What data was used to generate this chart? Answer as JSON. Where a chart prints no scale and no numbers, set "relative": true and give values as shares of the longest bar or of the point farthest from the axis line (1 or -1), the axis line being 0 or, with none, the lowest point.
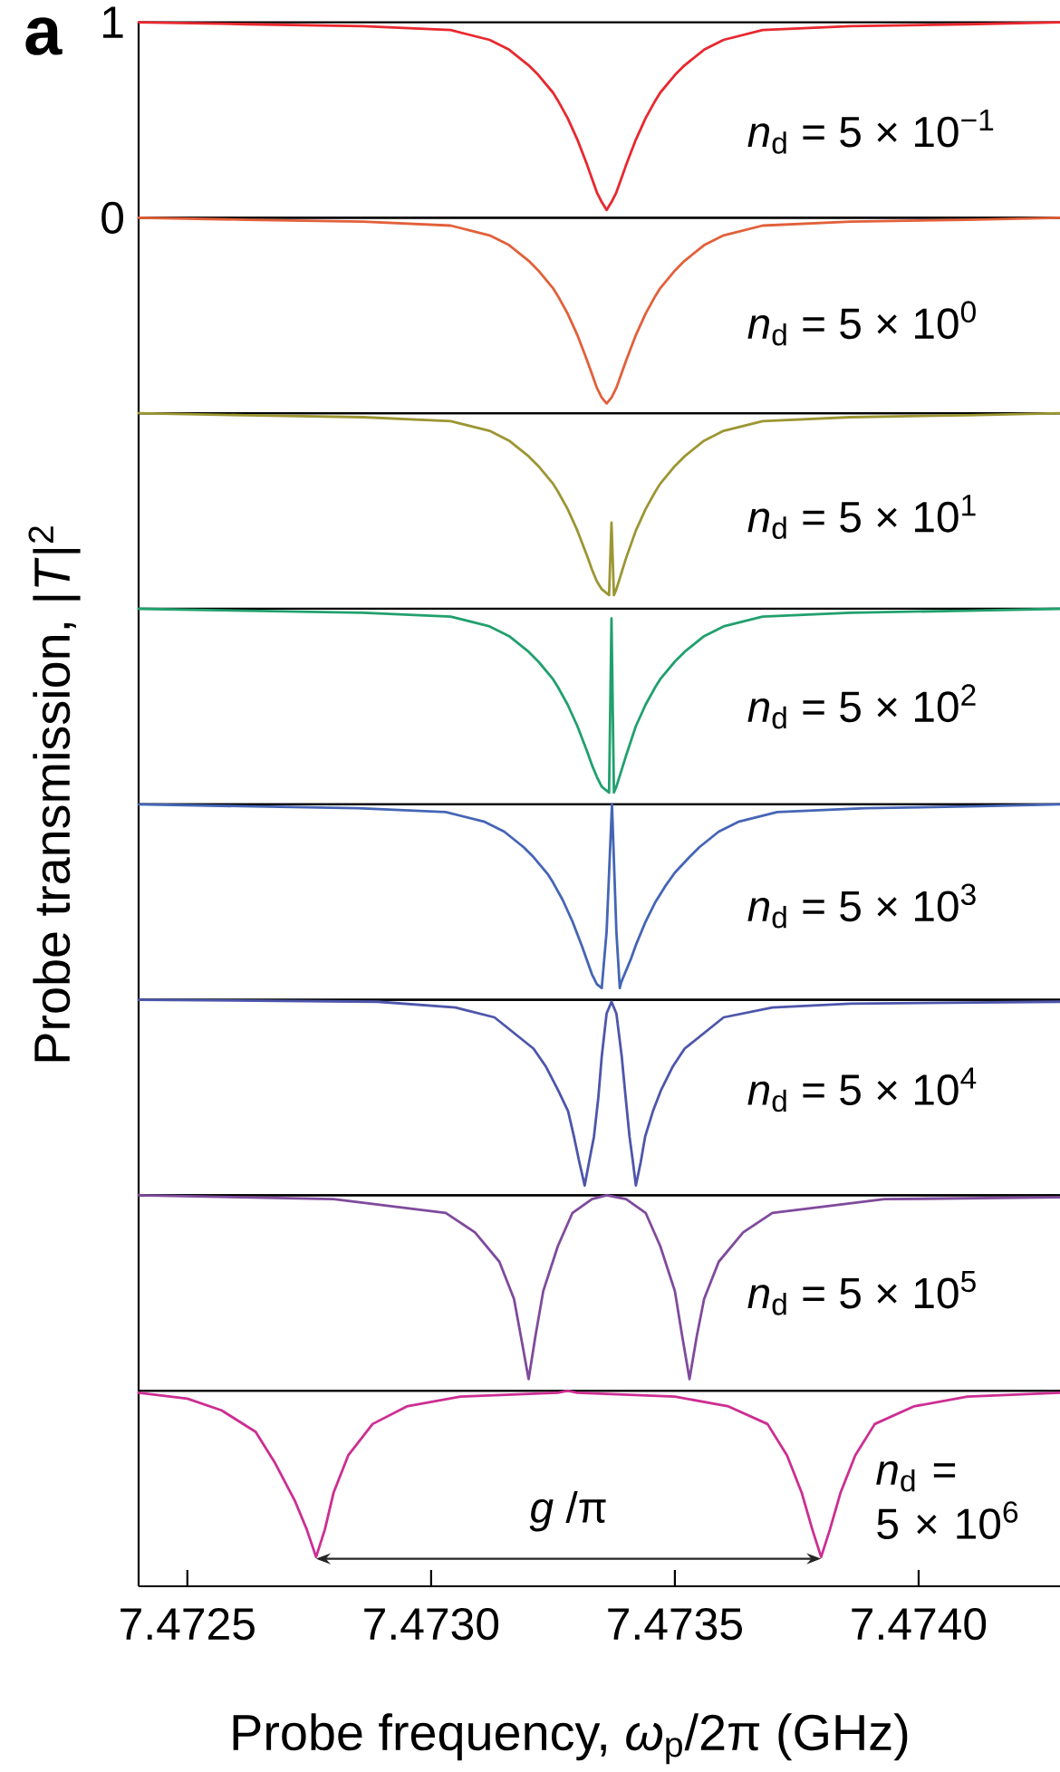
{
  "chart_data": [
    {
      "type": "line",
      "title": "a",
      "x": [
        7.4724,
        7.47262,
        7.47286,
        7.47304,
        7.47312,
        7.47316,
        7.4732,
        7.47322,
        7.47325,
        7.47326,
        7.47328,
        7.4733,
        7.47332,
        7.47333,
        7.47334,
        7.47335,
        7.47336,
        7.47337,
        7.47338,
        7.47339,
        7.4734,
        7.47342,
        7.47344,
        7.47346,
        7.47347,
        7.4735,
        7.47352,
        7.47356,
        7.4736,
        7.47368,
        7.47386,
        7.4741,
        7.47429
      ],
      "series": [
        {
          "name": "*n*$_{d}$ = 5 × 10$^{−1}$",
          "color": "#e8282f",
          "values": [
            1.0,
            0.99,
            0.98,
            0.96,
            0.91,
            0.86,
            0.78,
            0.73,
            0.64,
            0.6,
            0.51,
            0.4,
            0.27,
            0.2,
            0.13,
            0.08,
            0.04,
            0.08,
            0.13,
            0.2,
            0.27,
            0.4,
            0.51,
            0.6,
            0.64,
            0.73,
            0.78,
            0.86,
            0.91,
            0.96,
            0.98,
            0.99,
            1.0
          ]
        }
      ],
      "xlim": [
        7.4724,
        7.47429
      ],
      "ylim": [
        0,
        1
      ],
      "yticks": [
        0,
        1
      ],
      "tick_labels": "y"
    },
    {
      "type": "line",
      "relative": true,
      "x": [
        7.4724,
        7.47262,
        7.47286,
        7.47304,
        7.47312,
        7.47316,
        7.4732,
        7.47322,
        7.47325,
        7.47326,
        7.47328,
        7.4733,
        7.47332,
        7.47333,
        7.47334,
        7.47335,
        7.47336,
        7.47337,
        7.47338,
        7.47339,
        7.4734,
        7.47342,
        7.47344,
        7.47346,
        7.47347,
        7.4735,
        7.47352,
        7.47356,
        7.4736,
        7.47368,
        7.47386,
        7.4741,
        7.47429
      ],
      "series": [
        {
          "name": "*n*$_{d}$ = 5 × 10$^{0}$",
          "color": "#e2603a",
          "values": [
            1.0,
            0.99,
            0.98,
            0.96,
            0.91,
            0.86,
            0.78,
            0.73,
            0.64,
            0.6,
            0.51,
            0.4,
            0.27,
            0.2,
            0.13,
            0.08,
            0.05,
            0.08,
            0.13,
            0.2,
            0.27,
            0.4,
            0.51,
            0.6,
            0.64,
            0.73,
            0.78,
            0.86,
            0.91,
            0.96,
            0.98,
            0.99,
            1.0
          ]
        }
      ],
      "xlim": [
        7.4724,
        7.47429
      ],
      "tick_labels": false
    },
    {
      "type": "line",
      "relative": true,
      "x": [
        7.4724,
        7.47262,
        7.47286,
        7.47304,
        7.47312,
        7.47316,
        7.4732,
        7.47322,
        7.47325,
        7.47326,
        7.47328,
        7.4733,
        7.47332,
        7.47333,
        7.47334,
        7.47335,
        7.473365,
        7.47337,
        7.473375,
        7.47338,
        7.47339,
        7.4734,
        7.47342,
        7.47344,
        7.47346,
        7.47347,
        7.4735,
        7.47352,
        7.47356,
        7.4736,
        7.47368,
        7.47386,
        7.4741,
        7.47429
      ],
      "series": [
        {
          "name": "*n*$_{d}$ = 5 × 10$^{1}$",
          "color": "#9c9633",
          "values": [
            1.0,
            0.99,
            0.98,
            0.96,
            0.91,
            0.86,
            0.78,
            0.73,
            0.64,
            0.6,
            0.51,
            0.4,
            0.27,
            0.2,
            0.14,
            0.1,
            0.07,
            0.44,
            0.07,
            0.1,
            0.18,
            0.26,
            0.4,
            0.51,
            0.6,
            0.64,
            0.73,
            0.78,
            0.86,
            0.91,
            0.96,
            0.98,
            0.99,
            1.0
          ]
        }
      ],
      "xlim": [
        7.4724,
        7.47429
      ],
      "tick_labels": false
    },
    {
      "type": "line",
      "relative": true,
      "ylabel": "Probe transmission, |*T*|$^{2}$",
      "x": [
        7.4724,
        7.47262,
        7.47286,
        7.47304,
        7.47312,
        7.47316,
        7.4732,
        7.47322,
        7.47325,
        7.47326,
        7.47328,
        7.4733,
        7.47332,
        7.47333,
        7.47334,
        7.47335,
        7.473365,
        7.47337,
        7.473375,
        7.47338,
        7.47339,
        7.4734,
        7.47342,
        7.47344,
        7.47346,
        7.47347,
        7.4735,
        7.47352,
        7.47356,
        7.4736,
        7.47368,
        7.47386,
        7.4741,
        7.47429
      ],
      "series": [
        {
          "name": "*n*$_{d}$ = 5 × 10$^{2}$",
          "color": "#21a06e",
          "values": [
            1.0,
            0.99,
            0.98,
            0.96,
            0.91,
            0.86,
            0.78,
            0.73,
            0.64,
            0.6,
            0.51,
            0.4,
            0.27,
            0.2,
            0.14,
            0.09,
            0.06,
            0.95,
            0.06,
            0.09,
            0.17,
            0.25,
            0.4,
            0.51,
            0.6,
            0.64,
            0.73,
            0.78,
            0.86,
            0.91,
            0.96,
            0.98,
            0.99,
            1.0
          ]
        }
      ],
      "xlim": [
        7.4724,
        7.47429
      ],
      "tick_labels": false
    },
    {
      "type": "line",
      "relative": true,
      "x": [
        7.4724,
        7.47261,
        7.47285,
        7.47303,
        7.47311,
        7.47315,
        7.47319,
        7.47321,
        7.47324,
        7.47325,
        7.47327,
        7.47329,
        7.47331,
        7.47332,
        7.47333,
        7.47334,
        7.47335,
        7.47336,
        7.473371,
        7.47338,
        7.473387,
        7.47339,
        7.4734,
        7.47341,
        7.47342,
        7.47344,
        7.47346,
        7.47348,
        7.4735,
        7.47353,
        7.47355,
        7.47359,
        7.47363,
        7.47371,
        7.47389,
        7.47413,
        7.47429
      ],
      "series": [
        {
          "name": "*n*$_{d}$ = 5 × 10$^{3}$",
          "color": "#4565b5",
          "values": [
            1.0,
            0.99,
            0.98,
            0.96,
            0.91,
            0.86,
            0.78,
            0.73,
            0.64,
            0.6,
            0.51,
            0.4,
            0.27,
            0.2,
            0.13,
            0.08,
            0.06,
            0.35,
            1.0,
            0.35,
            0.06,
            0.09,
            0.15,
            0.21,
            0.28,
            0.4,
            0.5,
            0.58,
            0.65,
            0.73,
            0.78,
            0.86,
            0.91,
            0.96,
            0.98,
            0.99,
            1.0
          ]
        }
      ],
      "xlim": [
        7.4724,
        7.47429
      ],
      "tick_labels": false
    },
    {
      "type": "line",
      "relative": true,
      "x": [
        7.4724,
        7.47289,
        7.47305,
        7.47313,
        7.47321,
        7.473235,
        7.47326,
        7.473281,
        7.473293,
        7.473304,
        7.473315,
        7.473324,
        7.473334,
        7.473343,
        7.47335,
        7.47336,
        7.47337,
        7.47338,
        7.473391,
        7.473399,
        7.473407,
        7.473414,
        7.47342,
        7.47343,
        7.473439,
        7.473455,
        7.473472,
        7.473496,
        7.47352,
        7.4736,
        7.4737,
        7.47386,
        7.47429
      ],
      "series": [
        {
          "name": "*n*$_{d}$ = 5 × 10$^{4}$",
          "color": "#4d56ab",
          "values": [
            1.0,
            0.99,
            0.96,
            0.91,
            0.75,
            0.66,
            0.54,
            0.43,
            0.3,
            0.17,
            0.05,
            0.17,
            0.3,
            0.5,
            0.71,
            0.93,
            0.99,
            0.93,
            0.71,
            0.5,
            0.3,
            0.17,
            0.05,
            0.17,
            0.3,
            0.43,
            0.54,
            0.66,
            0.75,
            0.91,
            0.96,
            0.98,
            0.99
          ]
        }
      ],
      "xlim": [
        7.4724,
        7.47429
      ],
      "tick_labels": false
    },
    {
      "type": "line",
      "relative": true,
      "x": [
        7.4724,
        7.4728,
        7.47303,
        7.47309,
        7.47314,
        7.47317,
        7.473184,
        7.4732,
        7.473214,
        7.47323,
        7.47326,
        7.47329,
        7.47333,
        7.47336,
        7.4734,
        7.47344,
        7.47347,
        7.4735,
        7.473515,
        7.47353,
        7.473545,
        7.47356,
        7.47359,
        7.47364,
        7.4737,
        7.47393,
        7.47429
      ],
      "series": [
        {
          "name": "*n*$_{d}$ = 5 × 10$^{5}$",
          "color": "#7f4a9c",
          "values": [
            1.0,
            0.98,
            0.91,
            0.81,
            0.66,
            0.47,
            0.28,
            0.06,
            0.28,
            0.51,
            0.74,
            0.91,
            0.98,
            1.0,
            0.98,
            0.91,
            0.74,
            0.51,
            0.28,
            0.06,
            0.28,
            0.47,
            0.66,
            0.81,
            0.91,
            0.98,
            0.99
          ]
        }
      ],
      "xlim": [
        7.4724,
        7.47429
      ],
      "tick_labels": false
    },
    {
      "type": "line",
      "relative": true,
      "xlabel": "Probe frequency, *ω*$_{p}$/2π (GHz)",
      "annotations": [
        "*g* /π"
      ],
      "x": [
        7.4724,
        7.4725,
        7.47257,
        7.47264,
        7.47268,
        7.47272,
        7.472745,
        7.472764,
        7.472782,
        7.4728,
        7.47283,
        7.47288,
        7.47295,
        7.47306,
        7.47326,
        7.47328,
        7.4733,
        7.4735,
        7.47361,
        7.47369,
        7.47373,
        7.47376,
        7.473782,
        7.4738,
        7.473818,
        7.47384,
        7.47387,
        7.47391,
        7.47399,
        7.4741,
        7.47429
      ],
      "series": [
        {
          "name": "*n*$_{d}$ = 5 × 10$^{6}$",
          "color": "#cc2e92",
          "values": [
            0.99,
            0.96,
            0.9,
            0.79,
            0.63,
            0.44,
            0.29,
            0.15,
            0.29,
            0.48,
            0.67,
            0.83,
            0.92,
            0.97,
            0.99,
            1.0,
            0.99,
            0.97,
            0.92,
            0.83,
            0.67,
            0.48,
            0.29,
            0.15,
            0.29,
            0.48,
            0.67,
            0.83,
            0.92,
            0.97,
            0.99
          ]
        }
      ],
      "xlim": [
        7.4724,
        7.47429
      ],
      "xticks": [
        7.4725,
        {
          "value": 7.473,
          "label": "7.4730"
        },
        7.4735,
        {
          "value": 7.474,
          "label": "7.4740"
        }
      ],
      "tick_labels": "x"
    }
  ]
}
